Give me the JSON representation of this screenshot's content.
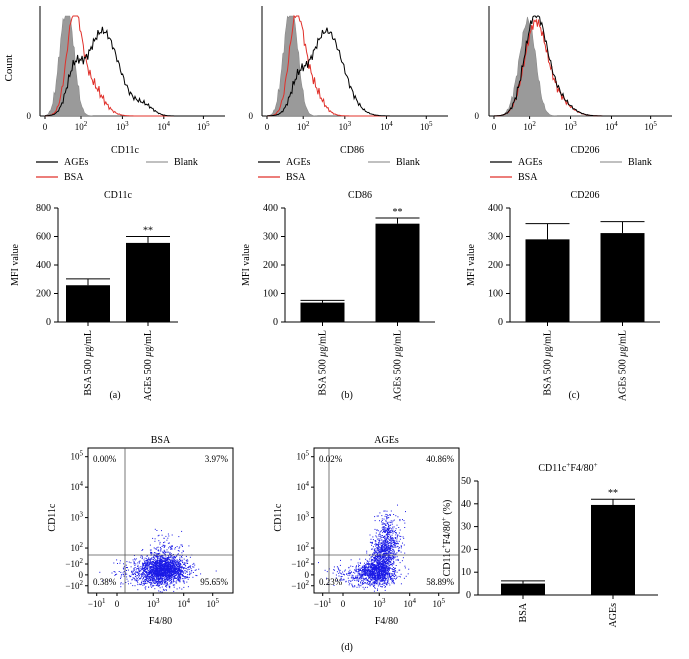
{
  "colors": {
    "ages": "#000000",
    "bsa": "#e0302a",
    "blank": "#9a9a9a",
    "bar": "#000000",
    "dots": "#1a1ae6"
  },
  "histograms": [
    {
      "marker": "CD11c",
      "ylabel": "Count",
      "zero_label": "0",
      "xticks": [
        "0",
        "10",
        "10",
        "10",
        "10"
      ],
      "xexp": [
        "",
        "2",
        "3",
        "4",
        "5"
      ]
    },
    {
      "marker": "CD86",
      "ylabel": "",
      "zero_label": "0",
      "xticks": [
        "0",
        "10",
        "10",
        "10",
        "10"
      ],
      "xexp": [
        "",
        "2",
        "3",
        "4",
        "5"
      ]
    },
    {
      "marker": "CD206",
      "ylabel": "",
      "zero_label": "0",
      "xticks": [
        "0",
        "10",
        "10",
        "10",
        "10"
      ],
      "xexp": [
        "",
        "2",
        "3",
        "4",
        "5"
      ]
    }
  ],
  "legend": {
    "ages": "AGEs",
    "bsa": "BSA",
    "blank": "Blank"
  },
  "chart_data": [
    {
      "type": "bar",
      "panel": "(a)",
      "title": "CD11c",
      "ylabel": "MFI value",
      "ylim": [
        0,
        800
      ],
      "yticks": [
        "0",
        "200",
        "400",
        "600",
        "800"
      ],
      "categories": [
        "BSA 500 μg/mL",
        "AGEs 500 μg/mL"
      ],
      "cat_parts": [
        [
          "BSA 500 ",
          "μ",
          "g/mL"
        ],
        [
          "AGEs 500 ",
          "μ",
          "g/mL"
        ]
      ],
      "values": [
        258,
        555
      ],
      "errors": [
        45,
        45
      ],
      "significance": [
        "",
        "**"
      ]
    },
    {
      "type": "bar",
      "panel": "(b)",
      "title": "CD86",
      "ylabel": "MFI value",
      "ylim": [
        0,
        400
      ],
      "yticks": [
        "0",
        "100",
        "200",
        "300",
        "400"
      ],
      "categories": [
        "BSA 500 μg/mL",
        "AGEs 500 μg/mL"
      ],
      "cat_parts": [
        [
          "BSA 500 ",
          "μ",
          "g/mL"
        ],
        [
          "AGEs 500 ",
          "μ",
          "g/mL"
        ]
      ],
      "values": [
        68,
        345
      ],
      "errors": [
        8,
        20
      ],
      "significance": [
        "",
        "**"
      ]
    },
    {
      "type": "bar",
      "panel": "(c)",
      "title": "CD206",
      "ylabel": "MFI value",
      "ylim": [
        0,
        400
      ],
      "yticks": [
        "0",
        "100",
        "200",
        "300",
        "400"
      ],
      "categories": [
        "BSA 500 μg/mL",
        "AGEs 500 μg/mL"
      ],
      "cat_parts": [
        [
          "BSA 500 ",
          "μ",
          "g/mL"
        ],
        [
          "AGEs 500 ",
          "μ",
          "g/mL"
        ]
      ],
      "values": [
        290,
        312
      ],
      "errors": [
        55,
        40
      ],
      "significance": [
        "",
        ""
      ]
    },
    {
      "type": "scatter",
      "panel": "BSA",
      "title": "BSA",
      "xlabel": "F4/80",
      "ylabel": "CD11c",
      "quadrants": {
        "ul": "0.00%",
        "ur": "3.97%",
        "ll": "0.38%",
        "lr": "95.65%"
      },
      "xticks": [
        "−10",
        "0",
        "10",
        "10",
        "10"
      ],
      "xexp": [
        "1",
        "",
        "3",
        "4",
        "5"
      ],
      "yticks": [
        "10",
        "10",
        "10",
        "10",
        "−10",
        "−10"
      ],
      "yexp": [
        "5",
        "4",
        "3",
        "2",
        "2",
        "2"
      ],
      "ymid": "0"
    },
    {
      "type": "scatter",
      "panel": "AGEs",
      "title": "AGEs",
      "xlabel": "F4/80",
      "ylabel": "CD11c",
      "quadrants": {
        "ul": "0.02%",
        "ur": "40.86%",
        "ll": "0.23%",
        "lr": "58.89%"
      },
      "xticks": [
        "−10",
        "0",
        "10",
        "10",
        "10"
      ],
      "xexp": [
        "1",
        "",
        "3",
        "4",
        "5"
      ],
      "yticks": [
        "10",
        "10",
        "10",
        "10",
        "−10",
        "−10"
      ],
      "yexp": [
        "5",
        "4",
        "3",
        "2",
        "2",
        "2"
      ],
      "ymid": "0"
    },
    {
      "type": "bar",
      "panel": "CD11c+F4/80+",
      "title": "CD11c",
      "title_sup": "+",
      "title2": "F4/80",
      "title2_sup": "+",
      "ylabel_parts": [
        "CD11c",
        "+",
        "F4/80",
        "+",
        " (%)"
      ],
      "ylim": [
        0,
        50
      ],
      "yticks": [
        "0",
        "10",
        "20",
        "30",
        "40",
        "50"
      ],
      "categories": [
        "BSA",
        "AGEs"
      ],
      "values": [
        5,
        39.5
      ],
      "errors": [
        1.2,
        2.5
      ],
      "significance": [
        "",
        "**"
      ]
    }
  ],
  "panel_labels": {
    "a": "(a)",
    "b": "(b)",
    "c": "(c)",
    "d": "(d)"
  }
}
